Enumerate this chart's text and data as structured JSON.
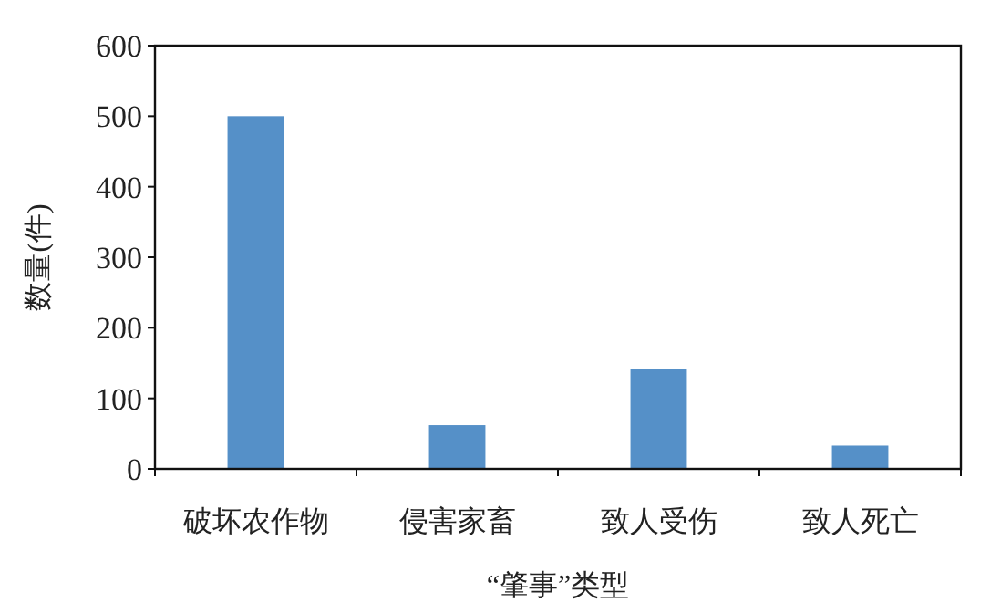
{
  "chart_data": {
    "type": "bar",
    "xlabel": "“肇事”类型",
    "ylabel": "数量(件)",
    "categories": [
      "破坏农作物",
      "侵害家畜",
      "致人受伤",
      "致人死亡"
    ],
    "values": [
      500,
      62,
      141,
      33
    ],
    "color": "#5590c8",
    "ylim": [
      0,
      600
    ],
    "yticks": [
      0,
      100,
      200,
      300,
      400,
      500,
      600
    ],
    "grid": false
  }
}
